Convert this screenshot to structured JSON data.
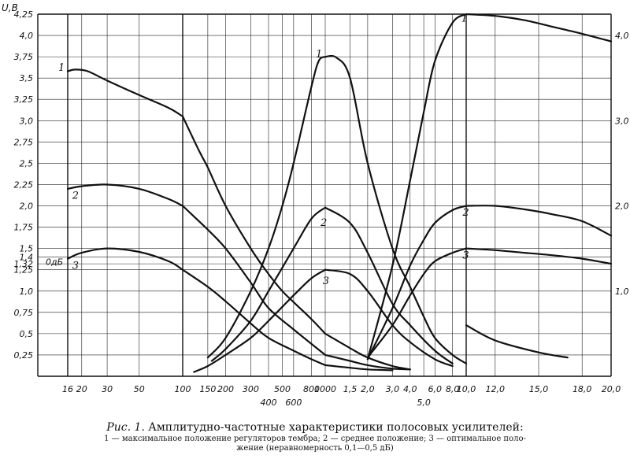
{
  "chart_data": {
    "type": "line",
    "y_axis": {
      "title": "U,B",
      "left_ticks": [
        "4,25",
        "4,0",
        "3,75",
        "3,5",
        "3,25",
        "3,0",
        "2,75",
        "2,5",
        "2,25",
        "2,0",
        "1,75",
        "1,5",
        "1,32",
        "1,25",
        "1,0",
        "0,75",
        "0,5",
        "0,25"
      ],
      "left_tick_values": [
        4.25,
        4.0,
        3.75,
        3.5,
        3.25,
        3.0,
        2.75,
        2.5,
        2.25,
        2.0,
        1.75,
        1.5,
        1.32,
        1.25,
        1.0,
        0.75,
        0.5,
        0.25
      ],
      "special_tick": {
        "label": "1,4",
        "value": 1.4
      },
      "db_marker": {
        "label": "0дБ",
        "value": 1.4
      },
      "right_ticks": [
        "4,0",
        "3,0",
        "2,0",
        "1,0"
      ],
      "right_tick_values": [
        4.0,
        3.0,
        2.0,
        1.0
      ],
      "ylim": [
        0,
        4.25
      ]
    },
    "x_axis_panels": [
      {
        "unit": "Hz",
        "range": [
          16,
          100
        ],
        "ticks": [
          "16",
          "20",
          "30",
          "50",
          "100"
        ],
        "tick_values": [
          16,
          20,
          30,
          50,
          100
        ]
      },
      {
        "unit": "Hz",
        "range": [
          100,
          1000
        ],
        "ticks": [
          "150",
          "200",
          "300",
          "400",
          "500",
          "600",
          "800",
          "1000"
        ],
        "tick_values": [
          150,
          200,
          300,
          400,
          500,
          600,
          800,
          1000
        ]
      },
      {
        "unit": "kHz",
        "range": [
          1,
          10
        ],
        "ticks": [
          "1,5",
          "2,0",
          "3,0",
          "4,0",
          "5,0",
          "6,0",
          "8,0",
          "10,0"
        ],
        "tick_values": [
          1.5,
          2,
          3,
          4,
          5,
          6,
          8,
          10
        ]
      },
      {
        "unit": "kHz",
        "range": [
          10,
          20
        ],
        "ticks": [
          "12,0",
          "15,0",
          "18,0",
          "20,0"
        ],
        "tick_values": [
          12,
          15,
          18,
          20
        ]
      }
    ],
    "series": [
      {
        "name": "1",
        "panel": 0,
        "x": [
          16,
          18,
          22,
          30,
          50,
          80,
          100
        ],
        "y": [
          3.58,
          3.6,
          3.58,
          3.47,
          3.3,
          3.15,
          3.05
        ]
      },
      {
        "name": "1",
        "panel": 1,
        "x": [
          100,
          130,
          150,
          200,
          300,
          400,
          500,
          600,
          800,
          1000
        ],
        "y": [
          3.05,
          2.65,
          2.45,
          2.0,
          1.5,
          1.2,
          1.0,
          0.87,
          0.67,
          0.5
        ]
      },
      {
        "name": "1",
        "panel": 2,
        "x": [
          1,
          1.5,
          2,
          3,
          4
        ],
        "y": [
          0.5,
          0.33,
          0.22,
          0.12,
          0.08
        ]
      },
      {
        "name": "2",
        "panel": 0,
        "x": [
          16,
          20,
          30,
          50,
          80,
          100
        ],
        "y": [
          2.2,
          2.23,
          2.25,
          2.2,
          2.08,
          2.0
        ]
      },
      {
        "name": "2",
        "panel": 1,
        "x": [
          100,
          150,
          200,
          300,
          400,
          600,
          800,
          1000
        ],
        "y": [
          2.0,
          1.72,
          1.5,
          1.1,
          0.8,
          0.55,
          0.38,
          0.25
        ]
      },
      {
        "name": "2",
        "panel": 2,
        "x": [
          1,
          1.5,
          2,
          3,
          4
        ],
        "y": [
          0.25,
          0.18,
          0.13,
          0.09,
          0.08
        ]
      },
      {
        "name": "3",
        "panel": 0,
        "x": [
          16,
          20,
          30,
          50,
          80,
          100
        ],
        "y": [
          1.38,
          1.45,
          1.5,
          1.46,
          1.35,
          1.25
        ]
      },
      {
        "name": "3",
        "panel": 1,
        "x": [
          100,
          150,
          200,
          300,
          400,
          600,
          800,
          1000
        ],
        "y": [
          1.25,
          1.05,
          0.88,
          0.62,
          0.45,
          0.3,
          0.2,
          0.13
        ]
      },
      {
        "name": "3",
        "panel": 2,
        "x": [
          1,
          1.5,
          2,
          3
        ],
        "y": [
          0.13,
          0.1,
          0.08,
          0.07
        ]
      },
      {
        "name": "1",
        "panel": 1,
        "x": [
          150,
          200,
          300,
          400,
          500,
          600,
          800,
          900,
          1000
        ],
        "y": [
          0.22,
          0.45,
          1.0,
          1.5,
          2.0,
          2.5,
          3.4,
          3.7,
          3.75
        ]
      },
      {
        "name": "1",
        "panel": 2,
        "x": [
          1,
          1.2,
          1.5,
          2,
          3,
          4,
          5,
          6,
          8,
          10
        ],
        "y": [
          3.75,
          3.74,
          3.5,
          2.5,
          1.5,
          1.05,
          0.7,
          0.45,
          0.25,
          0.15
        ]
      },
      {
        "name": "2",
        "panel": 1,
        "x": [
          160,
          200,
          300,
          400,
          600,
          800,
          1000
        ],
        "y": [
          0.18,
          0.32,
          0.65,
          1.0,
          1.5,
          1.85,
          1.98
        ]
      },
      {
        "name": "2",
        "panel": 2,
        "x": [
          1,
          1.5,
          2,
          3,
          4,
          6,
          8
        ],
        "y": [
          1.98,
          1.8,
          1.45,
          0.85,
          0.6,
          0.3,
          0.15
        ]
      },
      {
        "name": "3",
        "panel": 1,
        "x": [
          120,
          150,
          200,
          300,
          400,
          600,
          800,
          1000
        ],
        "y": [
          0.05,
          0.12,
          0.25,
          0.45,
          0.65,
          0.95,
          1.15,
          1.25
        ]
      },
      {
        "name": "3",
        "panel": 2,
        "x": [
          1,
          1.5,
          2,
          3,
          4,
          6,
          8
        ],
        "y": [
          1.25,
          1.2,
          1.0,
          0.6,
          0.4,
          0.2,
          0.12
        ]
      },
      {
        "name": "1",
        "panel": 2,
        "x": [
          2,
          3,
          4,
          5,
          6,
          8,
          10
        ],
        "y": [
          0.2,
          1.3,
          2.3,
          3.1,
          3.7,
          4.15,
          4.25
        ]
      },
      {
        "name": "1",
        "panel": 3,
        "x": [
          10,
          12,
          14,
          16,
          18,
          20
        ],
        "y": [
          4.25,
          4.23,
          4.18,
          4.1,
          4.02,
          3.93
        ]
      },
      {
        "name": "2",
        "panel": 2,
        "x": [
          2,
          3,
          4,
          5,
          6,
          8,
          10
        ],
        "y": [
          0.2,
          0.8,
          1.3,
          1.6,
          1.8,
          1.95,
          2.0
        ]
      },
      {
        "name": "2",
        "panel": 3,
        "x": [
          10,
          12,
          14,
          16,
          18,
          20
        ],
        "y": [
          2.0,
          2.0,
          1.96,
          1.9,
          1.82,
          1.65
        ]
      },
      {
        "name": "3",
        "panel": 2,
        "x": [
          2,
          3,
          4,
          5,
          6,
          8,
          10
        ],
        "y": [
          0.22,
          0.6,
          0.95,
          1.2,
          1.35,
          1.45,
          1.5
        ]
      },
      {
        "name": "3",
        "panel": 3,
        "x": [
          10,
          12,
          14,
          16,
          18,
          20
        ],
        "y": [
          1.5,
          1.48,
          1.45,
          1.42,
          1.38,
          1.32
        ]
      },
      {
        "name": "1",
        "panel": 3,
        "x": [
          10,
          12,
          15,
          17
        ],
        "y": [
          0.6,
          0.42,
          0.28,
          0.22
        ]
      }
    ],
    "curve_labels": [
      {
        "text": "1",
        "panel": 0,
        "x": 16,
        "y": 3.62
      },
      {
        "text": "2",
        "panel": 0,
        "x": 20,
        "y": 2.12
      },
      {
        "text": "3",
        "panel": 0,
        "x": 20,
        "y": 1.3
      },
      {
        "text": "1",
        "panel": 1,
        "x": 1000,
        "y": 3.78
      },
      {
        "text": "2",
        "panel": 2,
        "x": 1.08,
        "y": 1.8
      },
      {
        "text": "3",
        "panel": 2,
        "x": 1.12,
        "y": 1.12
      },
      {
        "text": "1",
        "panel": 3,
        "x": 10.3,
        "y": 4.2
      },
      {
        "text": "2",
        "panel": 3,
        "x": 10.4,
        "y": 1.92
      },
      {
        "text": "3",
        "panel": 3,
        "x": 10.4,
        "y": 1.42
      }
    ]
  },
  "caption": {
    "prefix": "Рис. 1.",
    "title": "Амплитудно-частотные характеристики полосовых усилителей:",
    "note_line1": "1 — максимальное положение регуляторов тембра; 2 — среднее положение; 3 — оптимальное поло-",
    "note_line2": "жение (неравномерность 0,1—0,5 дБ)"
  }
}
